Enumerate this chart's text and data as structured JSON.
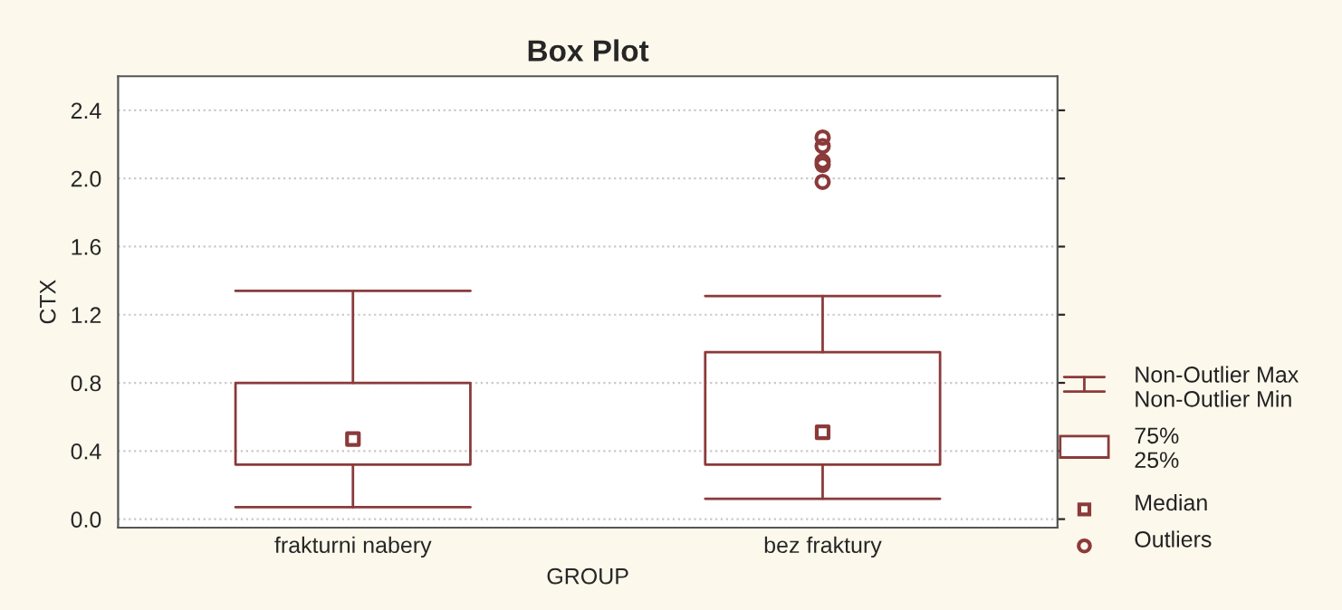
{
  "chart_data": {
    "type": "box",
    "title": "Box Plot",
    "xlabel": "GROUP",
    "ylabel": "CTX",
    "categories": [
      "frakturni nabery",
      "bez fraktury"
    ],
    "boxes": [
      {
        "low": 0.07,
        "q1": 0.32,
        "median": 0.47,
        "q3": 0.8,
        "high": 1.34
      },
      {
        "low": 0.12,
        "q1": 0.32,
        "median": 0.51,
        "q3": 0.98,
        "high": 1.31,
        "outliers": [
          1.98,
          2.08,
          2.1,
          2.19,
          2.24
        ]
      }
    ],
    "color": "#8b3a3a",
    "ylim": [
      -0.05,
      2.6
    ],
    "yticks": [
      {
        "value": 0,
        "label": "0.0"
      },
      0.4,
      0.8,
      1.2,
      1.6,
      {
        "value": 2,
        "label": "2.0"
      },
      2.4
    ],
    "grid": "y",
    "annotations": [
      "Non-Outlier Max\nNon-Outlier Min",
      "75%\n25%",
      "Median",
      "Outliers"
    ]
  }
}
